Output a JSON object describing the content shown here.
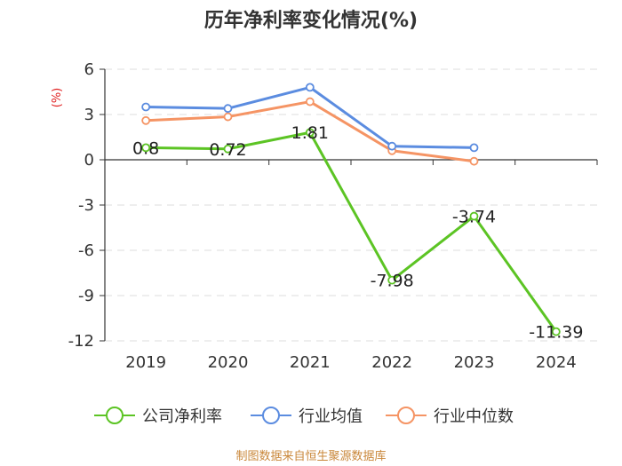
{
  "chart_data": {
    "type": "line",
    "title": "历年净利率变化情况(%)",
    "ylabel": "(%)",
    "categories": [
      "2019",
      "2020",
      "2021",
      "2022",
      "2023",
      "2024"
    ],
    "ylim": [
      -12,
      6
    ],
    "yticks": [
      6,
      3,
      0,
      -3,
      -6,
      -9,
      -12
    ],
    "grid": true,
    "legend_position": "bottom",
    "series": [
      {
        "name": "公司净利率",
        "color": "#5cc424",
        "values": [
          0.8,
          0.72,
          1.81,
          -7.98,
          -3.74,
          -11.39
        ],
        "labels": [
          "0.8",
          "0.72",
          "1.81",
          "-7.98",
          "-3.74",
          "-11.39"
        ]
      },
      {
        "name": "行业均值",
        "color": "#5b8ce0",
        "values": [
          3.5,
          3.4,
          4.8,
          0.9,
          0.8,
          null
        ]
      },
      {
        "name": "行业中位数",
        "color": "#f59464",
        "values": [
          2.6,
          2.85,
          3.85,
          0.6,
          -0.1,
          null
        ]
      }
    ]
  },
  "source": "制图数据来自恒生聚源数据库"
}
